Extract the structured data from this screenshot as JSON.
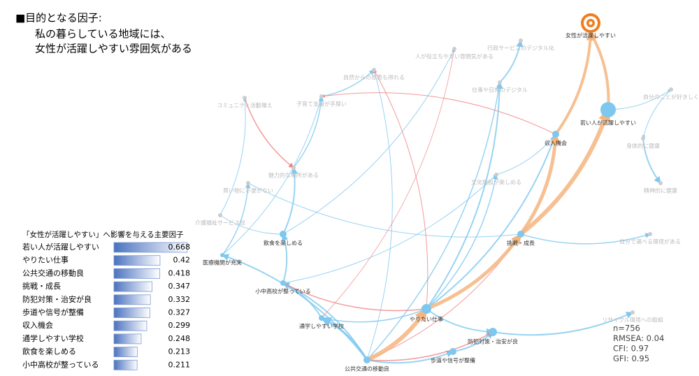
{
  "header": {
    "title": "■目的となる因子:",
    "lines": [
      "私の暮らしている地域には、",
      "女性が活躍しやすい雰囲気がある"
    ]
  },
  "table": {
    "title": "「女性が活躍しやすい」へ影響を与える主要因子",
    "rows": [
      {
        "label": "若い人が活躍しやすい",
        "value": 0.668
      },
      {
        "label": "やりたい仕事",
        "value": 0.42
      },
      {
        "label": "公共交通の移動良",
        "value": 0.418
      },
      {
        "label": "挑戦・成長",
        "value": 0.347
      },
      {
        "label": "防犯対策・治安が良",
        "value": 0.332
      },
      {
        "label": "歩道や信号が整備",
        "value": 0.327
      },
      {
        "label": "収入機会",
        "value": 0.299
      },
      {
        "label": "通学しやすい学校",
        "value": 0.248
      },
      {
        "label": "飲食を楽しめる",
        "value": 0.213
      },
      {
        "label": "小中高校が整っている",
        "value": 0.211
      }
    ]
  },
  "nodes": [
    {
      "label": "女性が活躍しやすい"
    },
    {
      "label": "若い人が活躍しやすい"
    },
    {
      "label": "収入機会"
    },
    {
      "label": "挑戦・成長"
    },
    {
      "label": "飲食を楽しめる"
    },
    {
      "label": "医療機関が充実"
    },
    {
      "label": "小中高校が整っている"
    },
    {
      "label": "通学しやすい学校"
    },
    {
      "label": "やりたい仕事"
    },
    {
      "label": "公共交通の移動良"
    },
    {
      "label": "防犯対策・治安が良"
    },
    {
      "label": "歩道や信号が整備"
    },
    {
      "label": "介護福祉サービス良"
    },
    {
      "label": "コミュニティ活動増え"
    },
    {
      "label": "子育て支援が手厚い"
    },
    {
      "label": "買い物に不便がない"
    },
    {
      "label": "魅力的な場所がある"
    },
    {
      "label": "行政サービスのデジタル化"
    },
    {
      "label": "仕事や日常のデジタル"
    },
    {
      "label": "自分のことが好きしく"
    },
    {
      "label": "身体的に健康"
    },
    {
      "label": "精神的に健康"
    },
    {
      "label": "文化施設が楽しめる"
    },
    {
      "label": "自分で選べる環境がある"
    },
    {
      "label": "リサイクル環境への取組"
    },
    {
      "label": "人が役立ちやすい雰囲気がある"
    },
    {
      "label": "自然からの恩恵も得れる"
    }
  ],
  "stats": [
    "n=756",
    "RMSEA: 0.04",
    "CFI: 0.97",
    "GFI: 0.95"
  ]
}
